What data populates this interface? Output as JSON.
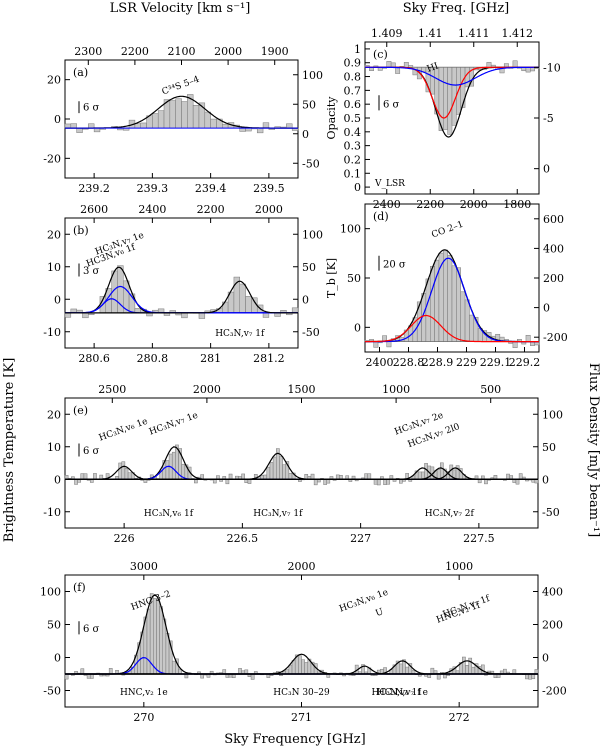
{
  "figure": {
    "top_axis_left": "LSR Velocity [km s⁻¹]",
    "top_axis_right": "Sky Freq. [GHz]",
    "left_axis": "Brightness Temperature [K]",
    "right_axis": "Flux Density [mJy beam⁻¹]",
    "bottom_axis": "Sky Frequency [GHz]"
  },
  "chart_data": [
    {
      "panel": "a",
      "type": "line",
      "label": "(a)",
      "xlim": [
        239.15,
        239.5
      ],
      "ylim": [
        -22,
        30
      ],
      "y2lim": [
        -75,
        102
      ],
      "xticks": [
        "239.2",
        "239.3",
        "239.4",
        "239.5"
      ],
      "yticks": [
        "-20",
        "0",
        "20"
      ],
      "y2ticks": [
        "-50",
        "0",
        "50",
        "100"
      ],
      "topticks": [
        "2300",
        "2200",
        "2100",
        "2000",
        "1900"
      ],
      "sigma": "6 σ",
      "lines": [
        {
          "text": "C³⁴S 5–4",
          "x": 239.325
        }
      ],
      "fits": [
        {
          "color": "#000000",
          "center": 239.325,
          "amp": 14,
          "sigma": 0.035
        }
      ],
      "baseline": {
        "color": "#0000ff"
      }
    },
    {
      "panel": "b",
      "type": "line",
      "label": "(b)",
      "xlim": [
        280.5,
        281.3
      ],
      "ylim": [
        -10,
        27
      ],
      "y2lim": [
        -65,
        140
      ],
      "xticks": [
        "280.6",
        "280.8",
        "281",
        "281.2"
      ],
      "yticks": [
        "-10",
        "0",
        "10",
        "20"
      ],
      "y2ticks": [
        "-50",
        "0",
        "50",
        "100"
      ],
      "topticks": [
        "2600",
        "2400",
        "2200",
        "2000"
      ],
      "sigma": "3 σ",
      "lines": [
        {
          "text": "HC₃N,v₇ 1e",
          "x": 280.69
        },
        {
          "text": "HC₃N,v₇ 1f",
          "x": 281.1
        },
        {
          "text": "HC3N,v₆ 1f",
          "x": 280.66
        }
      ],
      "fits": [
        {
          "color": "#000000",
          "center": 280.685,
          "amp": 13,
          "sigma": 0.035
        },
        {
          "color": "#0000ff",
          "center": 280.69,
          "amp": 7.5,
          "sigma": 0.04
        },
        {
          "color": "#0000ff",
          "center": 280.66,
          "amp": 4,
          "sigma": 0.03
        },
        {
          "color": "#000000",
          "center": 281.1,
          "amp": 9,
          "sigma": 0.035
        }
      ]
    },
    {
      "panel": "c",
      "type": "line",
      "label": "(c)",
      "xlim": [
        2470,
        1720
      ],
      "ylim": [
        1.0,
        -0.2
      ],
      "y2lim": [
        -12,
        3.5
      ],
      "xlabel_axis": "V_LSR",
      "xticks": [
        "2400",
        "2200",
        "2000",
        "1800"
      ],
      "yticks": [
        "0",
        "0.1",
        "0.2",
        "0.3",
        "0.4",
        "0.5",
        "0.6",
        "0.7",
        "0.8",
        "0.9",
        "1"
      ],
      "y2ticks": [
        "0",
        "-5",
        "-10"
      ],
      "topticks": [
        "1.409",
        "1.41",
        "1.411",
        "1.412"
      ],
      "ylabel": "Opacity",
      "sigma": "6 σ",
      "lines": [
        {
          "text": "HI",
          "x": 2175
        }
      ],
      "fits": [
        {
          "color": "#000000",
          "center": 2110,
          "amp": 0.55,
          "sigma": 55
        },
        {
          "color": "#ff0000",
          "center": 2130,
          "amp": 0.4,
          "sigma": 50
        },
        {
          "color": "#0000ff",
          "center": 2080,
          "amp": 0.14,
          "sigma": 85
        }
      ]
    },
    {
      "panel": "d",
      "type": "line",
      "label": "(d)",
      "xlim": [
        228.73,
        229.2
      ],
      "ylim": [
        -10,
        132
      ],
      "y2lim": [
        -140,
        700
      ],
      "xticks": [
        "2400",
        "228.8",
        "228.9",
        "229",
        "229.1",
        "229.2"
      ],
      "yticks": [
        "0",
        "50",
        "100"
      ],
      "y2ticks": [
        "-200",
        "0",
        "200",
        "400",
        "600"
      ],
      "ylabel": "T_b [K]",
      "sigma": "20 σ",
      "lines": [
        {
          "text": "CO 2–1",
          "x": 228.955
        }
      ],
      "fits": [
        {
          "color": "#000000",
          "center": 228.945,
          "amp": 88,
          "sigma": 0.05
        },
        {
          "color": "#0000ff",
          "center": 228.955,
          "amp": 80,
          "sigma": 0.045
        },
        {
          "color": "#ff0000",
          "center": 228.895,
          "amp": 25,
          "sigma": 0.04
        }
      ]
    },
    {
      "panel": "e",
      "type": "line",
      "label": "(e)",
      "xlim": [
        226.0,
        227.6
      ],
      "ylim": [
        -15,
        25
      ],
      "y2lim": [
        -60,
        105
      ],
      "xticks": [
        "226",
        "226.5",
        "227",
        "227.5"
      ],
      "yticks": [
        "-10",
        "0",
        "10",
        "20"
      ],
      "y2ticks": [
        "-50",
        "0",
        "50",
        "100"
      ],
      "topticks": [
        "2500",
        "2000",
        "1500",
        "1000",
        "500"
      ],
      "sigma": "6 σ",
      "lines": [
        {
          "text": "HC₃N,v₇ 1e",
          "x": 226.37
        },
        {
          "text": "HC₃N,v₇ 1f",
          "x": 226.72
        },
        {
          "text": "HC₃N,v₇ 2l0",
          "x": 227.25
        },
        {
          "text": "HC₃N,v₇ 2f",
          "x": 227.3
        },
        {
          "text": "HC₃N,v₆ 1e",
          "x": 226.2
        },
        {
          "text": "HC₃N,v₆ 1f",
          "x": 226.35
        },
        {
          "text": "HC₃N,v₇ 2e",
          "x": 227.2
        }
      ],
      "fits": [
        {
          "color": "#000000",
          "center": 226.2,
          "amp": 4,
          "sigma": 0.025
        },
        {
          "color": "#000000",
          "center": 226.37,
          "amp": 10,
          "sigma": 0.03
        },
        {
          "color": "#0000ff",
          "center": 226.35,
          "amp": 4,
          "sigma": 0.025
        },
        {
          "color": "#000000",
          "center": 226.72,
          "amp": 8,
          "sigma": 0.03
        },
        {
          "color": "#000000",
          "center": 227.21,
          "amp": 3.5,
          "sigma": 0.022
        },
        {
          "color": "#000000",
          "center": 227.27,
          "amp": 3.5,
          "sigma": 0.022
        },
        {
          "color": "#000000",
          "center": 227.32,
          "amp": 3.5,
          "sigma": 0.022
        }
      ]
    },
    {
      "panel": "f",
      "type": "line",
      "label": "(f)",
      "xlim": [
        269.5,
        272.5
      ],
      "ylim": [
        -50,
        150
      ],
      "y2lim": [
        -265,
        405
      ],
      "xticks": [
        "270",
        "271",
        "272"
      ],
      "yticks": [
        "-50",
        "0",
        "50",
        "100"
      ],
      "y2ticks": [
        "-200",
        "0",
        "200",
        "400"
      ],
      "topticks": [
        "3000",
        "2000",
        "1000"
      ],
      "sigma": "6 σ",
      "lines": [
        {
          "text": "HNC 3–2",
          "x": 270.05
        },
        {
          "text": "HC₃N 30–29",
          "x": 271.0
        },
        {
          "text": "U",
          "x": 271.5
        },
        {
          "text": "HC₃N,v₇ 1e",
          "x": 271.64
        },
        {
          "text": "HC₃N,v₇ 1f",
          "x": 272.05
        },
        {
          "text": "HNC,v₂ 1e",
          "x": 270.0
        },
        {
          "text": "HC₃N,v₆ 1e",
          "x": 271.4
        },
        {
          "text": "HC₃N,v₆ 1f",
          "x": 271.6
        },
        {
          "text": "HNC,v₂ 1f",
          "x": 272.0
        }
      ],
      "fits": [
        {
          "color": "#000000",
          "center": 270.07,
          "amp": 120,
          "sigma": 0.07
        },
        {
          "color": "#0000ff",
          "center": 270.0,
          "amp": 25,
          "sigma": 0.05
        },
        {
          "color": "#000000",
          "center": 271.0,
          "amp": 30,
          "sigma": 0.06
        },
        {
          "color": "#000000",
          "center": 271.4,
          "amp": 12,
          "sigma": 0.04
        },
        {
          "color": "#000000",
          "center": 271.64,
          "amp": 20,
          "sigma": 0.05
        },
        {
          "color": "#000000",
          "center": 272.05,
          "amp": 20,
          "sigma": 0.06
        }
      ]
    }
  ]
}
